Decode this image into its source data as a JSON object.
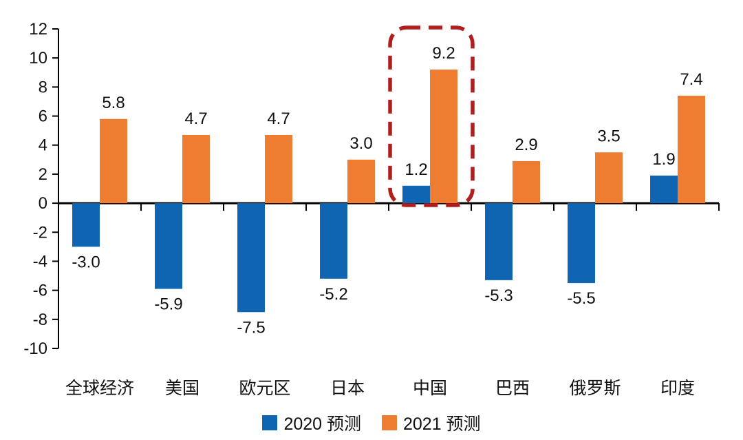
{
  "chart_data": {
    "type": "bar",
    "title": "",
    "xlabel": "",
    "ylabel": "",
    "categories": [
      "全球经济",
      "美国",
      "欧元区",
      "日本",
      "中国",
      "巴西",
      "俄罗斯",
      "印度"
    ],
    "series": [
      {
        "name": "2020 预测",
        "color": "#1065b3",
        "values": [
          -3.0,
          -5.9,
          -7.5,
          -5.2,
          1.2,
          -5.3,
          -5.5,
          1.9
        ],
        "labels": [
          "-3.0",
          "-5.9",
          "-7.5",
          "-5.2",
          "1.2",
          "-5.3",
          "-5.5",
          "1.9"
        ]
      },
      {
        "name": "2021 预测",
        "color": "#ee7d31",
        "values": [
          5.8,
          4.7,
          4.7,
          3.0,
          9.2,
          2.9,
          3.5,
          7.4
        ],
        "labels": [
          "5.8",
          "4.7",
          "4.7",
          "3.0",
          "9.2",
          "2.9",
          "3.5",
          "7.4"
        ]
      }
    ],
    "ylim": [
      -10,
      12
    ],
    "ytick_step": 2,
    "yticks": [
      12,
      10,
      8,
      6,
      4,
      2,
      0,
      -2,
      -4,
      -6,
      -8,
      -10
    ],
    "grid": false,
    "legend_position": "bottom",
    "axis_color": "#000000",
    "text_color": "#111111",
    "highlight": {
      "category": "中国",
      "style": "dashed-rounded-rect",
      "color": "#b01e1e"
    }
  }
}
